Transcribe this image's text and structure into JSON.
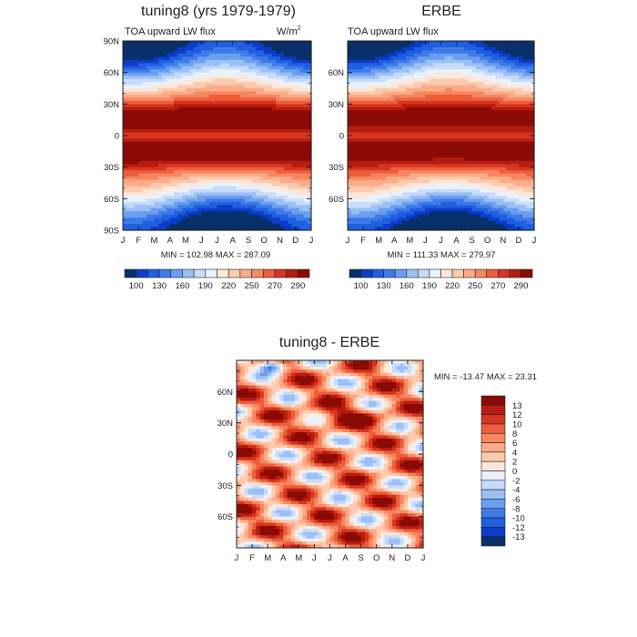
{
  "chart_data": [
    {
      "type": "heatmap",
      "title": "tuning8 (yrs 1979-1979)",
      "subtitle": "TOA upward LW flux",
      "units_label": "W/m",
      "units_exponent": "2",
      "x_ticks": [
        "J",
        "F",
        "M",
        "A",
        "M",
        "J",
        "J",
        "A",
        "S",
        "O",
        "N",
        "D",
        "J"
      ],
      "y_ticks": [
        "90N",
        "60N",
        "30N",
        "0",
        "30S",
        "60S",
        "90S"
      ],
      "ylim": [
        -90,
        90
      ],
      "stats": "MIN = 102.98  MAX = 287.09",
      "min": 102.98,
      "max": 287.09,
      "colorbar_labels": [
        "100",
        "130",
        "160",
        "190",
        "220",
        "250",
        "270",
        "290"
      ]
    },
    {
      "type": "heatmap",
      "title": "ERBE",
      "subtitle": "TOA upward LW flux",
      "x_ticks": [
        "J",
        "F",
        "M",
        "A",
        "M",
        "J",
        "J",
        "A",
        "S",
        "O",
        "N",
        "D",
        "J"
      ],
      "y_ticks": [
        "60N",
        "30N",
        "0",
        "30S",
        "60S"
      ],
      "ylim": [
        -90,
        90
      ],
      "stats": "MIN = 111.33  MAX = 279.97",
      "min": 111.33,
      "max": 279.97,
      "colorbar_labels": [
        "100",
        "130",
        "160",
        "190",
        "220",
        "250",
        "270",
        "290"
      ]
    },
    {
      "type": "heatmap",
      "title": "tuning8 - ERBE",
      "x_ticks": [
        "J",
        "F",
        "M",
        "A",
        "M",
        "J",
        "J",
        "A",
        "S",
        "O",
        "N",
        "D",
        "J"
      ],
      "y_ticks": [
        "60N",
        "30N",
        "0",
        "30S",
        "60S"
      ],
      "ylim": [
        -90,
        90
      ],
      "stats": "MIN = -13.47  MAX =  23.31",
      "min": -13.47,
      "max": 23.31,
      "colorbar_labels": [
        "13",
        "12",
        "10",
        "8",
        "6",
        "4",
        "2",
        "0",
        "-2",
        "-4",
        "-6",
        "-8",
        "-10",
        "-12",
        "-13"
      ]
    }
  ],
  "colors": {
    "palette": [
      "#08306b",
      "#0b3cc9",
      "#1f5fe0",
      "#3f7be8",
      "#6b9ef0",
      "#9cbff5",
      "#c6dcfa",
      "#eaf2fd",
      "#fde7d9",
      "#fccaae",
      "#fbab87",
      "#f68761",
      "#ec5e3b",
      "#d8351e",
      "#b71c10",
      "#8c0a05"
    ]
  }
}
